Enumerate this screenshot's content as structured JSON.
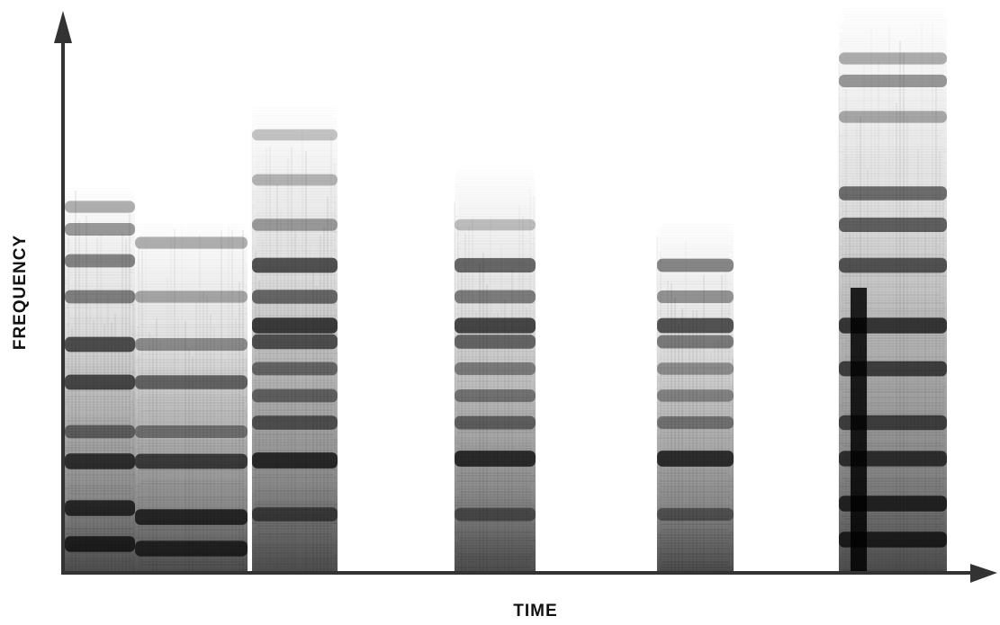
{
  "chart_data": {
    "type": "spectrogram",
    "xlabel": "TIME",
    "ylabel": "FREQUENCY"
  }
}
